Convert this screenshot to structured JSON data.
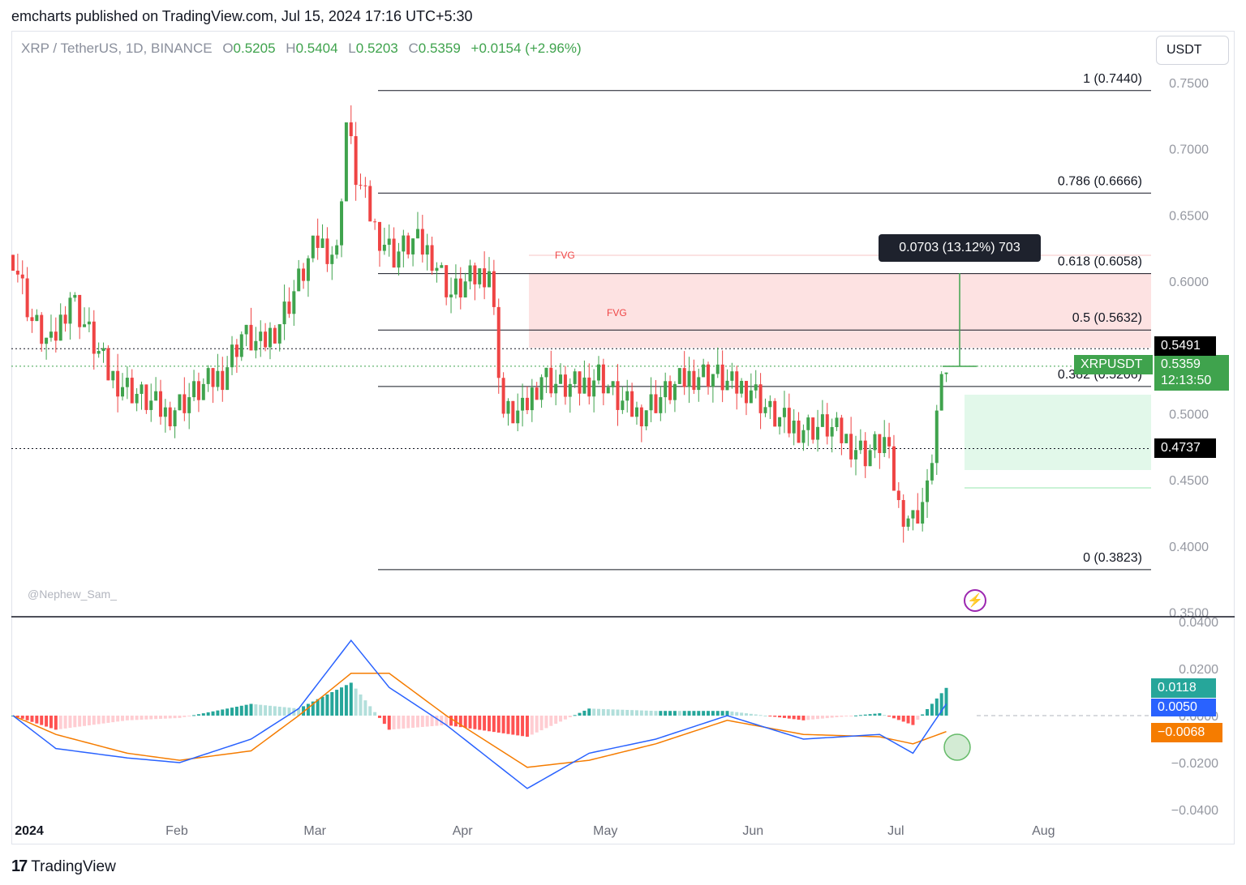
{
  "publisher": "emcharts published on TradingView.com, Jul 15, 2024 17:16 UTC+5:30",
  "symbol": {
    "name": "XRP / TetherUS, 1D, BINANCE",
    "o_label": "O",
    "o": "0.5205",
    "h_label": "H",
    "h": "0.5404",
    "l_label": "L",
    "l": "0.5203",
    "c_label": "C",
    "c": "0.5359",
    "change": "+0.0154 (+2.96%)"
  },
  "currency": "USDT",
  "watermark": "@Nephew_Sam_",
  "measure_tooltip": "0.0703 (13.12%) 703",
  "price_tag": {
    "symbol": "XRPUSDT",
    "price": "0.5359",
    "countdown": "12:13:50"
  },
  "level_tags": {
    "upper": "0.5491",
    "lower": "0.4737"
  },
  "macd_tags": {
    "hist": "0.0118",
    "macd": "0.0050",
    "signal": "−0.0068"
  },
  "fvg_labels": [
    "FVG",
    "FVG"
  ],
  "brand": "TradingView",
  "colors": {
    "up": "#3fa34d",
    "down": "#ef4444",
    "macd": "#2962ff",
    "signal": "#f57c00",
    "fvg_zone": "#fde2e2",
    "demand_zone": "#e2f8ea"
  },
  "chart_data": [
    {
      "type": "candlestick",
      "symbol": "XRPUSDT",
      "interval": "1D",
      "y_axis": {
        "ticks": [
          "0.7500",
          "0.7000",
          "0.6500",
          "0.6000",
          "0.5500",
          "0.5000",
          "0.4500",
          "0.4000",
          "0.3500"
        ],
        "range": [
          0.35,
          0.76
        ]
      },
      "x_axis": {
        "ticks": [
          "2024",
          "Feb",
          "Mar",
          "Apr",
          "May",
          "Jun",
          "Jul",
          "Aug"
        ]
      },
      "fibonacci": [
        {
          "ratio": "1",
          "label": "1 (0.7440)",
          "price": 0.744
        },
        {
          "ratio": "0.786",
          "label": "0.786 (0.6666)",
          "price": 0.6666
        },
        {
          "ratio": "0.618",
          "label": "0.618 (0.6058)",
          "price": 0.6058
        },
        {
          "ratio": "0.5",
          "label": "0.5 (0.5632)",
          "price": 0.5632
        },
        {
          "ratio": "0.382",
          "label": "0.382 (0.5206)",
          "price": 0.5206
        },
        {
          "ratio": "0",
          "label": "0 (0.3823)",
          "price": 0.3823
        }
      ],
      "horizontal_levels": [
        0.5491,
        0.4737
      ],
      "last_price": 0.5359,
      "closes_sampled": [
        {
          "date": "2024-01-01",
          "close": 0.62
        },
        {
          "date": "2024-01-05",
          "close": 0.57
        },
        {
          "date": "2024-01-09",
          "close": 0.55
        },
        {
          "date": "2024-01-13",
          "close": 0.59
        },
        {
          "date": "2024-01-17",
          "close": 0.56
        },
        {
          "date": "2024-01-21",
          "close": 0.53
        },
        {
          "date": "2024-01-25",
          "close": 0.52
        },
        {
          "date": "2024-01-29",
          "close": 0.51
        },
        {
          "date": "2024-02-02",
          "close": 0.5
        },
        {
          "date": "2024-02-06",
          "close": 0.51
        },
        {
          "date": "2024-02-10",
          "close": 0.52
        },
        {
          "date": "2024-02-14",
          "close": 0.53
        },
        {
          "date": "2024-02-18",
          "close": 0.56
        },
        {
          "date": "2024-02-22",
          "close": 0.55
        },
        {
          "date": "2024-02-26",
          "close": 0.57
        },
        {
          "date": "2024-03-01",
          "close": 0.6
        },
        {
          "date": "2024-03-05",
          "close": 0.63
        },
        {
          "date": "2024-03-09",
          "close": 0.62
        },
        {
          "date": "2024-03-11",
          "close": 0.72
        },
        {
          "date": "2024-03-13",
          "close": 0.68
        },
        {
          "date": "2024-03-17",
          "close": 0.64
        },
        {
          "date": "2024-03-21",
          "close": 0.62
        },
        {
          "date": "2024-03-25",
          "close": 0.63
        },
        {
          "date": "2024-03-29",
          "close": 0.62
        },
        {
          "date": "2024-04-02",
          "close": 0.59
        },
        {
          "date": "2024-04-06",
          "close": 0.6
        },
        {
          "date": "2024-04-10",
          "close": 0.61
        },
        {
          "date": "2024-04-13",
          "close": 0.5
        },
        {
          "date": "2024-04-17",
          "close": 0.5
        },
        {
          "date": "2024-04-21",
          "close": 0.53
        },
        {
          "date": "2024-04-25",
          "close": 0.52
        },
        {
          "date": "2024-04-29",
          "close": 0.52
        },
        {
          "date": "2024-05-03",
          "close": 0.53
        },
        {
          "date": "2024-05-07",
          "close": 0.51
        },
        {
          "date": "2024-05-11",
          "close": 0.5
        },
        {
          "date": "2024-05-15",
          "close": 0.51
        },
        {
          "date": "2024-05-19",
          "close": 0.52
        },
        {
          "date": "2024-05-23",
          "close": 0.53
        },
        {
          "date": "2024-05-27",
          "close": 0.53
        },
        {
          "date": "2024-05-31",
          "close": 0.52
        },
        {
          "date": "2024-06-04",
          "close": 0.52
        },
        {
          "date": "2024-06-08",
          "close": 0.5
        },
        {
          "date": "2024-06-12",
          "close": 0.49
        },
        {
          "date": "2024-06-16",
          "close": 0.49
        },
        {
          "date": "2024-06-20",
          "close": 0.49
        },
        {
          "date": "2024-06-24",
          "close": 0.48
        },
        {
          "date": "2024-06-28",
          "close": 0.47
        },
        {
          "date": "2024-07-02",
          "close": 0.48
        },
        {
          "date": "2024-07-05",
          "close": 0.43
        },
        {
          "date": "2024-07-08",
          "close": 0.42
        },
        {
          "date": "2024-07-11",
          "close": 0.44
        },
        {
          "date": "2024-07-13",
          "close": 0.5
        },
        {
          "date": "2024-07-15",
          "close": 0.5359
        }
      ]
    },
    {
      "type": "macd",
      "y_axis": {
        "ticks": [
          "0.0400",
          "0.0200",
          "0.0000",
          "−0.0200",
          "−0.0400"
        ],
        "range": [
          -0.04,
          0.04
        ]
      },
      "values_sampled": [
        {
          "date": "2024-01-01",
          "macd": 0.0,
          "signal": 0.0
        },
        {
          "date": "2024-01-10",
          "macd": -0.014,
          "signal": -0.008
        },
        {
          "date": "2024-01-25",
          "macd": -0.018,
          "signal": -0.016
        },
        {
          "date": "2024-02-05",
          "macd": -0.02,
          "signal": -0.019
        },
        {
          "date": "2024-02-20",
          "macd": -0.01,
          "signal": -0.015
        },
        {
          "date": "2024-03-01",
          "macd": 0.003,
          "signal": 0.0
        },
        {
          "date": "2024-03-12",
          "macd": 0.032,
          "signal": 0.018
        },
        {
          "date": "2024-03-20",
          "macd": 0.012,
          "signal": 0.018
        },
        {
          "date": "2024-04-01",
          "macd": -0.004,
          "signal": 0.0
        },
        {
          "date": "2024-04-18",
          "macd": -0.031,
          "signal": -0.022
        },
        {
          "date": "2024-05-01",
          "macd": -0.016,
          "signal": -0.019
        },
        {
          "date": "2024-05-15",
          "macd": -0.01,
          "signal": -0.012
        },
        {
          "date": "2024-05-30",
          "macd": 0.0,
          "signal": -0.002
        },
        {
          "date": "2024-06-15",
          "macd": -0.01,
          "signal": -0.008
        },
        {
          "date": "2024-07-01",
          "macd": -0.008,
          "signal": -0.009
        },
        {
          "date": "2024-07-08",
          "macd": -0.016,
          "signal": -0.012
        },
        {
          "date": "2024-07-15",
          "macd": 0.005,
          "signal": -0.0068
        }
      ],
      "last_hist": 0.0118
    }
  ]
}
